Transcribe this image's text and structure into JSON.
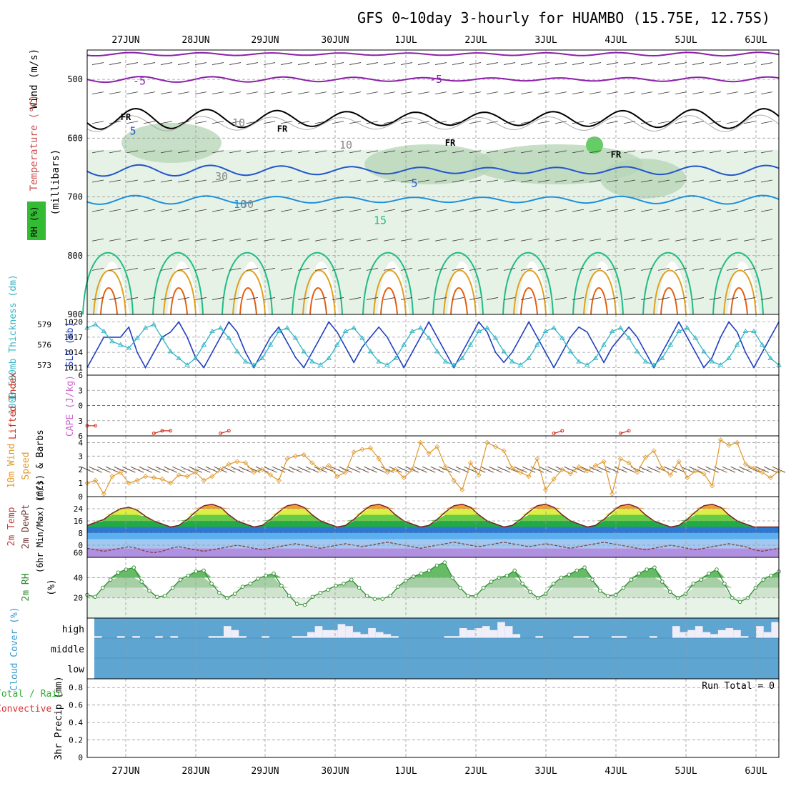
{
  "title": "GFS 0~10day 3-hourly for HUAMBO (15.75E, 12.75S)",
  "date_labels": [
    "27JUN",
    "28JUN",
    "29JUN",
    "30JUN",
    "1JUL",
    "2JUL",
    "3JUL",
    "4JUL",
    "5JUL",
    "6JUL"
  ],
  "colors": {
    "frame": "#000000",
    "grid": "#9a9a9a",
    "rh_light": "#e6f2e6",
    "rh_mid": "#b9d6b9",
    "rh_dark": "#93b493",
    "fr_line": "#000000",
    "temp_m5": "#8b1fa8",
    "temp_5": "#2255cc",
    "temp_10": "#1e90dd",
    "temp_15": "#22bb88",
    "temp_warm": "#e0a020",
    "temp_hot": "#e06010",
    "slp_line": "#1f3fbf",
    "thickness_line": "#33b5c5",
    "li_line": "#d03020",
    "wind_speed": "#e0982a",
    "temp_fill_top": "#e08020",
    "cloud_fill": "#5fa5d2",
    "cloud_bar": "#f0eef8",
    "rh2m_fill": "#5cb85c"
  },
  "chart_data": [
    {
      "id": "upper_air",
      "type": "contour",
      "ylabel_parts": [
        "Wind (m/s)",
        "Temperature (°C)",
        "RH (%)",
        "(millibars)"
      ],
      "y_ticks": [
        500,
        600,
        700,
        800,
        900
      ],
      "ylim": [
        450,
        900
      ],
      "contour_labels": [
        "5",
        "FR",
        "10",
        "15",
        "30",
        "10",
        "-5"
      ],
      "temperature_levels_c": [
        -5,
        0,
        5,
        10,
        15
      ],
      "rh_levels_pct": [
        30,
        50,
        70,
        90
      ]
    },
    {
      "id": "slp_thickness",
      "type": "line",
      "ylabel_left": "1000-500mb Thickness (dm)",
      "ylabel_right": "SLP (mb)",
      "left_ticks": [
        573,
        576,
        579
      ],
      "left_ylim": [
        571.5,
        580.5
      ],
      "right_ticks": [
        1011,
        1014,
        1017,
        1020
      ],
      "right_ylim": [
        1009.5,
        1021.5
      ],
      "series": [
        {
          "name": "SLP",
          "axis": "right",
          "values": [
            1011,
            1014,
            1017,
            1017,
            1017,
            1019,
            1014,
            1011,
            1014,
            1017,
            1018,
            1020,
            1017,
            1013,
            1011,
            1014,
            1017,
            1020,
            1018,
            1014,
            1011,
            1014,
            1017,
            1019,
            1016,
            1013,
            1011,
            1014,
            1017,
            1020,
            1018,
            1015,
            1012,
            1015,
            1017,
            1019,
            1017,
            1014,
            1011,
            1014,
            1017,
            1020,
            1017,
            1014,
            1011,
            1014,
            1017,
            1020,
            1018,
            1014,
            1012,
            1014,
            1017,
            1020,
            1017,
            1014,
            1011,
            1014,
            1017,
            1019,
            1018,
            1015,
            1012,
            1015,
            1017,
            1019,
            1017,
            1014,
            1011,
            1014,
            1017,
            1020,
            1017,
            1014,
            1011,
            1013,
            1017,
            1020,
            1018,
            1014,
            1011,
            1014,
            1017,
            1020
          ]
        },
        {
          "name": "Thickness",
          "axis": "left",
          "values": [
            578.5,
            579,
            578,
            576.5,
            576,
            575.5,
            577,
            578.5,
            579,
            577,
            575,
            574,
            573,
            574,
            576,
            578,
            578.5,
            577,
            575,
            573.5,
            573,
            574,
            576,
            578,
            578.5,
            577,
            575,
            573.5,
            573,
            574,
            576,
            578,
            578.5,
            577,
            575,
            573.5,
            573,
            574,
            576,
            578,
            578.5,
            577,
            575,
            573.5,
            573,
            574,
            576,
            578,
            578.5,
            577,
            575,
            573.5,
            573,
            574,
            576,
            578,
            578.5,
            577,
            575,
            573.5,
            573,
            574,
            576,
            578,
            578.5,
            577,
            575,
            573.5,
            573,
            574,
            576,
            578,
            578.5,
            577,
            575,
            573.5,
            573,
            574,
            576,
            578,
            578,
            576,
            574,
            573
          ]
        }
      ]
    },
    {
      "id": "lifted_index",
      "type": "line",
      "ylabel": "Lifted Index",
      "ylabel_right": "CAPE (J/kg)",
      "y_ticks": [
        -6,
        -3,
        0,
        3,
        6
      ],
      "tick_labels": [
        "6",
        "3",
        "0",
        "3",
        "6"
      ],
      "ylim": [
        -6,
        6
      ],
      "series": [
        {
          "name": "Lifted Index",
          "values": [
            4,
            4,
            null,
            null,
            null,
            null,
            null,
            null,
            5.5,
            5,
            5,
            null,
            null,
            null,
            null,
            null,
            5.5,
            5,
            null,
            null,
            null,
            null,
            null,
            null,
            null,
            null,
            null,
            null,
            null,
            null,
            null,
            null,
            null,
            null,
            null,
            null,
            null,
            null,
            null,
            null,
            null,
            null,
            null,
            null,
            null,
            null,
            null,
            null,
            null,
            null,
            null,
            null,
            null,
            null,
            null,
            null,
            5.5,
            5,
            null,
            null,
            null,
            null,
            null,
            null,
            5.5,
            5,
            null,
            null,
            null,
            null,
            null,
            null,
            null,
            null,
            null,
            null,
            null,
            null,
            null,
            null,
            null,
            null,
            null,
            null
          ]
        }
      ]
    },
    {
      "id": "wind10m",
      "type": "line",
      "ylabel": "10m Wind Speed (m/s) & Barbs",
      "y_ticks": [
        0,
        1,
        2,
        3,
        4
      ],
      "ylim": [
        0,
        4.5
      ],
      "series": [
        {
          "name": "10m Wind Speed",
          "values": [
            1,
            1.2,
            0.2,
            1.5,
            1.8,
            1,
            1.2,
            1.5,
            1.4,
            1.3,
            1,
            1.6,
            1.5,
            1.8,
            1.2,
            1.5,
            2,
            2.4,
            2.6,
            2.5,
            1.8,
            2,
            1.6,
            1.2,
            2.8,
            3,
            3.1,
            2.5,
            2,
            2.3,
            1.5,
            1.8,
            3.3,
            3.5,
            3.6,
            2.8,
            1.8,
            2,
            1.4,
            2,
            4,
            3.2,
            3.7,
            2.2,
            1.2,
            0.5,
            2.5,
            1.6,
            4,
            3.7,
            3.4,
            2.1,
            1.8,
            1.5,
            2.8,
            0.5,
            1.3,
            2,
            1.7,
            2.2,
            1.9,
            2.3,
            2.6,
            0.2,
            2.8,
            2.5,
            1.8,
            2.9,
            3.4,
            2.1,
            1.6,
            2.6,
            1.4,
            1.9,
            1.7,
            0.8,
            4.2,
            3.8,
            4,
            2.4,
            2.1,
            1.8,
            1.4,
            1.9
          ]
        }
      ]
    },
    {
      "id": "temp2m",
      "type": "area",
      "ylabel": "2m Temp 2m DewPt (6hr Min/Max) (°C)",
      "y_ticks": [
        0,
        8,
        16,
        24
      ],
      "tick_labels": [
        "0",
        "8",
        "16",
        "24"
      ],
      "extra_tick": "60",
      "ylim": [
        -8,
        32
      ],
      "series": [
        {
          "name": "2m Temp",
          "values": [
            13,
            15,
            17,
            21,
            24,
            25,
            23,
            19,
            16,
            14,
            12,
            13,
            17,
            22,
            26,
            27,
            25,
            20,
            16,
            14,
            12,
            13,
            17,
            22,
            26,
            27,
            25,
            20,
            16,
            14,
            12,
            13,
            17,
            22,
            26,
            27,
            25,
            20,
            16,
            14,
            12,
            13,
            17,
            22,
            26,
            27,
            25,
            20,
            16,
            14,
            12,
            13,
            17,
            22,
            26,
            27,
            25,
            20,
            16,
            14,
            12,
            13,
            17,
            22,
            26,
            27,
            25,
            20,
            16,
            14,
            12,
            13,
            17,
            22,
            26,
            27,
            25,
            20,
            16,
            14,
            12,
            12,
            12,
            12
          ]
        },
        {
          "name": "2m DewPt",
          "values": [
            -2,
            -3,
            -4,
            -3,
            -2,
            -1,
            -2,
            -4,
            -5,
            -4,
            -2,
            -1,
            -2,
            -3,
            -4,
            -3,
            -2,
            -1,
            0,
            -1,
            -2,
            -3,
            -2,
            -1,
            0,
            1,
            0,
            -1,
            -2,
            -1,
            0,
            1,
            0,
            -1,
            0,
            1,
            2,
            1,
            0,
            -1,
            -2,
            -1,
            0,
            1,
            2,
            1,
            0,
            -1,
            0,
            1,
            2,
            1,
            0,
            -1,
            0,
            1,
            0,
            -1,
            -2,
            -1,
            0,
            1,
            2,
            1,
            0,
            -1,
            -2,
            -3,
            -2,
            -1,
            0,
            -1,
            -2,
            -3,
            -2,
            -1,
            0,
            1,
            0,
            -1,
            -3,
            -4,
            -3,
            -2
          ]
        }
      ]
    },
    {
      "id": "rh2m",
      "type": "area",
      "ylabel": "2m RH (%)",
      "y_ticks": [
        20,
        40
      ],
      "ylim": [
        0,
        60
      ],
      "series": [
        {
          "name": "2m RH",
          "values": [
            23,
            21,
            30,
            38,
            45,
            48,
            50,
            36,
            27,
            21,
            22,
            30,
            38,
            42,
            46,
            47,
            34,
            25,
            20,
            24,
            31,
            34,
            39,
            42,
            44,
            32,
            22,
            14,
            13,
            21,
            25,
            28,
            32,
            34,
            38,
            30,
            22,
            19,
            19,
            22,
            31,
            37,
            41,
            44,
            47,
            52,
            55,
            40,
            30,
            22,
            22,
            30,
            36,
            40,
            42,
            47,
            34,
            26,
            20,
            24,
            34,
            40,
            43,
            47,
            50,
            38,
            27,
            22,
            23,
            30,
            38,
            44,
            48,
            50,
            36,
            26,
            20,
            24,
            34,
            38,
            44,
            48,
            34,
            20,
            16,
            20,
            30,
            38,
            42,
            46
          ]
        }
      ]
    },
    {
      "id": "cloud",
      "type": "bar",
      "ylabel": "Cloud Cover (%)",
      "layer_labels": [
        "high",
        "middle",
        "low"
      ],
      "series": [
        {
          "name": "high",
          "values": [
            10,
            0,
            0,
            10,
            0,
            10,
            0,
            0,
            10,
            0,
            10,
            0,
            0,
            0,
            0,
            10,
            10,
            60,
            40,
            10,
            0,
            0,
            10,
            0,
            0,
            0,
            10,
            10,
            30,
            60,
            40,
            40,
            70,
            60,
            30,
            20,
            50,
            30,
            20,
            10,
            0,
            0,
            0,
            0,
            0,
            0,
            10,
            10,
            50,
            40,
            50,
            60,
            40,
            80,
            60,
            20,
            0,
            0,
            10,
            0,
            0,
            0,
            0,
            10,
            10,
            0,
            0,
            0,
            10,
            10,
            0,
            0,
            0,
            10,
            0,
            0,
            60,
            30,
            40,
            60,
            30,
            20,
            40,
            50,
            40,
            10,
            0,
            60,
            30,
            80
          ]
        }
      ]
    },
    {
      "id": "precip",
      "type": "bar",
      "ylabel": "3hr Precip (mm)",
      "ylabel_left": "Total / Rain Convective",
      "y_ticks": [
        0,
        0.2,
        0.4,
        0.6,
        0.8
      ],
      "tick_labels": [
        "0",
        "0.2",
        "0.4",
        "0.6",
        "0.8"
      ],
      "ylim": [
        0,
        0.9
      ],
      "annotation": "Run Total = 0",
      "series": []
    }
  ]
}
